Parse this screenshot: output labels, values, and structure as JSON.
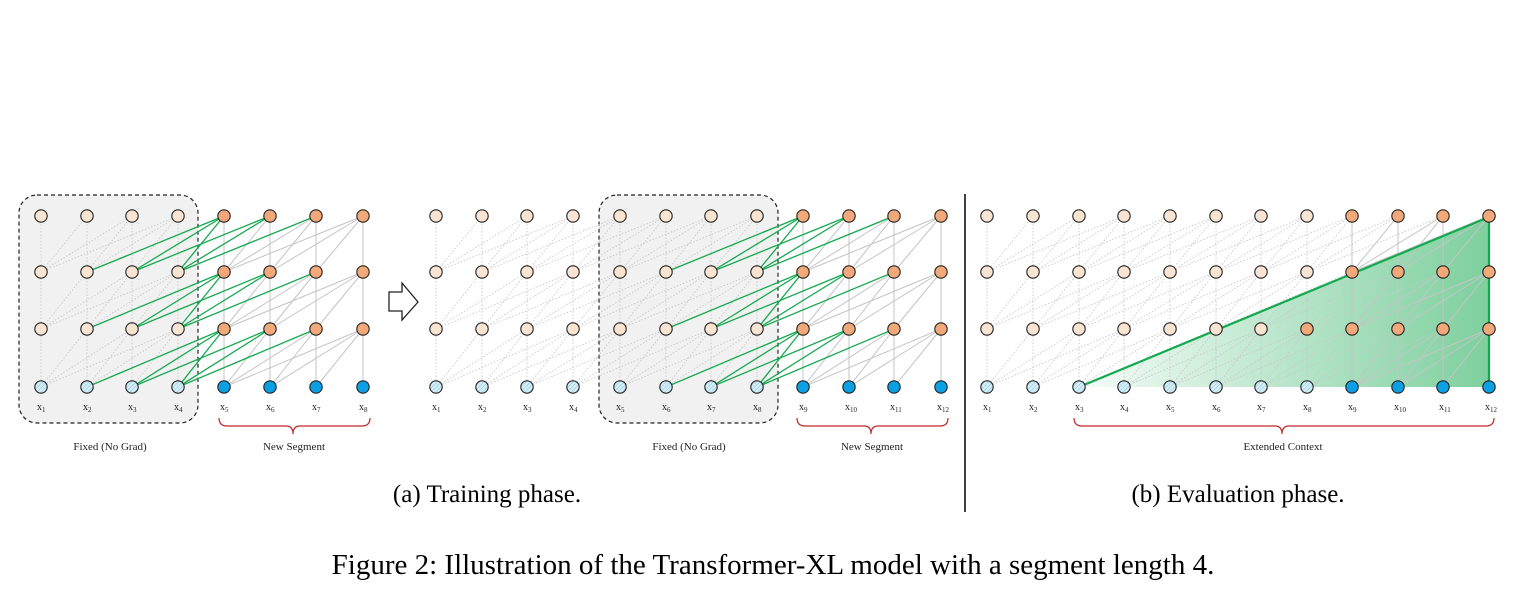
{
  "figure": {
    "caption": "Figure 2: Illustration of the Transformer-XL model with a segment length 4."
  },
  "panel_a": {
    "caption": "(a) Training phase.",
    "left": {
      "tokens": [
        "x1",
        "x2",
        "x3",
        "x4",
        "x5",
        "x6",
        "x7",
        "x8"
      ],
      "fixed_label": "Fixed (No Grad)",
      "new_label": "New Segment"
    },
    "right": {
      "tokens": [
        "x1",
        "x2",
        "x3",
        "x4",
        "x5",
        "x6",
        "x7",
        "x8",
        "x9",
        "x10",
        "x11",
        "x12"
      ],
      "fixed_label": "Fixed (No Grad)",
      "new_label": "New Segment"
    }
  },
  "panel_b": {
    "caption": "(b) Evaluation phase.",
    "tokens": [
      "x1",
      "x2",
      "x3",
      "x4",
      "x5",
      "x6",
      "x7",
      "x8",
      "x9",
      "x10",
      "x11",
      "x12"
    ],
    "context_label": "Extended Context"
  },
  "colors": {
    "old_hidden": "#f9e4d2",
    "new_hidden": "#f2a97a",
    "old_input": "#bfe3f2",
    "new_input": "#0aa0e3",
    "green_edge": "#14a94f",
    "gray_edge": "#c4c4c4",
    "dotted_edge": "#c8c8c8",
    "brace": "#c0282a",
    "fixed_box": "#f1f1f1"
  }
}
